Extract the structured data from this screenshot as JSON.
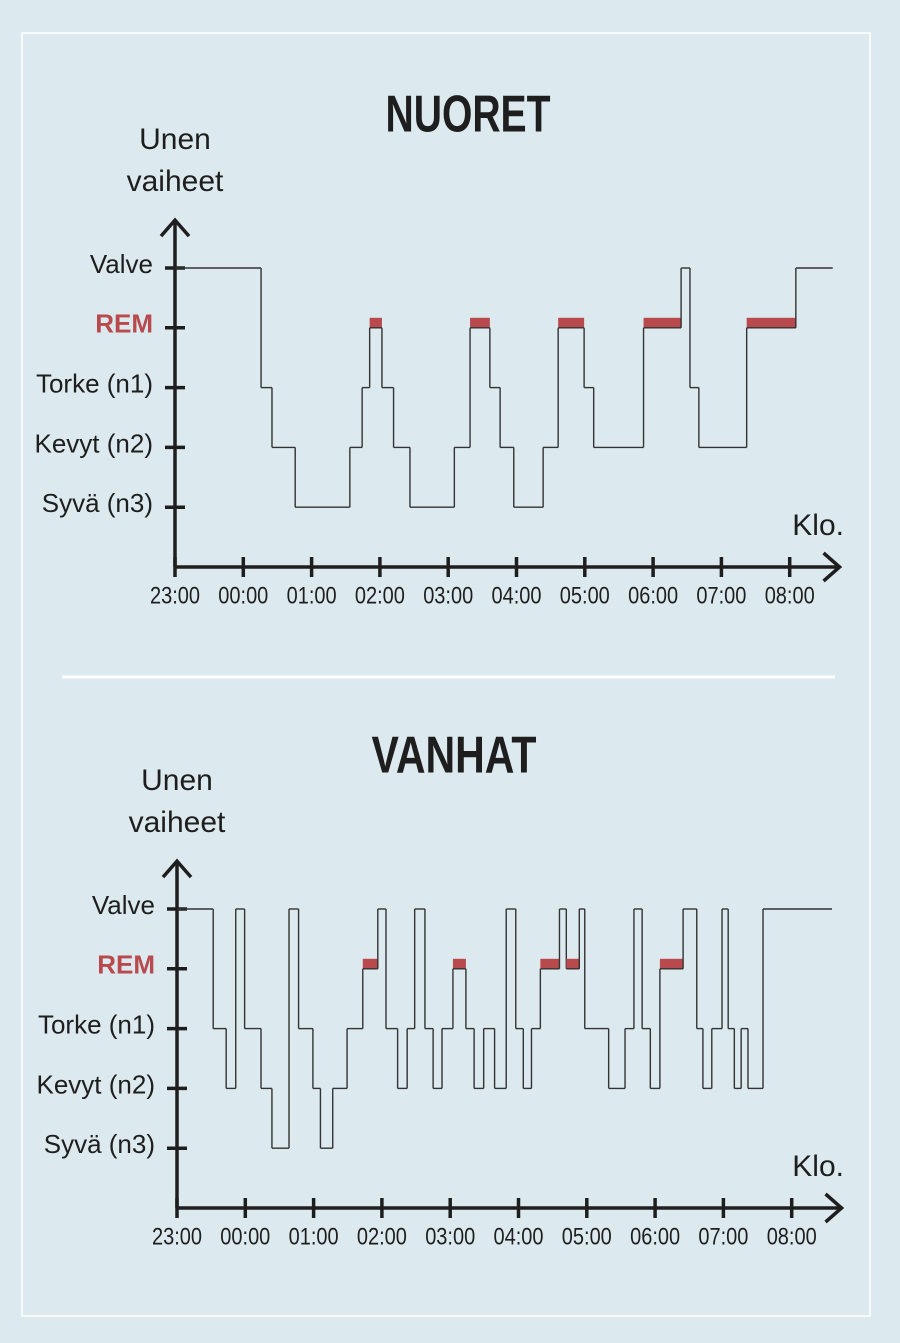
{
  "chart_data": [
    {
      "type": "step",
      "title": "NUORET",
      "y_label_lines": [
        "Unen",
        "vaiheet"
      ],
      "x_label": "Klo.",
      "xlim": [
        23,
        32.73
      ],
      "ylim": [
        0,
        5.8
      ],
      "xticks": [
        {
          "value": 23,
          "label": "23:00"
        },
        {
          "value": 24,
          "label": "00:00"
        },
        {
          "value": 25,
          "label": "01:00"
        },
        {
          "value": 26,
          "label": "02:00"
        },
        {
          "value": 27,
          "label": "03:00"
        },
        {
          "value": 28,
          "label": "04:00"
        },
        {
          "value": 29,
          "label": "05:00"
        },
        {
          "value": 30,
          "label": "06:00"
        },
        {
          "value": 31,
          "label": "07:00"
        },
        {
          "value": 32,
          "label": "08:00"
        }
      ],
      "yticks": [
        {
          "value": 5,
          "label": "Valve"
        },
        {
          "value": 4,
          "label": "REM"
        },
        {
          "value": 3,
          "label": "Torke (n1)"
        },
        {
          "value": 2,
          "label": "Kevyt (n2)"
        },
        {
          "value": 1,
          "label": "Syvä (n3)"
        }
      ],
      "color": "#333333",
      "highlight_tick": 1,
      "highlight_color": "#b84a4e",
      "x": [
        23,
        24.26,
        24.42,
        24.76,
        25.56,
        25.74,
        25.85,
        26.03,
        26.2,
        26.44,
        27.09,
        27.32,
        27.61,
        27.76,
        27.96,
        28.39,
        28.61,
        28.99,
        29.13,
        29.86,
        30.41,
        30.54,
        30.67,
        31.37,
        32.09,
        32.63
      ],
      "values": [
        5,
        3,
        2,
        1,
        2,
        3,
        4,
        3,
        2,
        1,
        2,
        4,
        3,
        2,
        1,
        2,
        4,
        3,
        2,
        4,
        5,
        3,
        2,
        4,
        5,
        5
      ]
    },
    {
      "type": "step",
      "title": "VANHAT",
      "y_label_lines": [
        "Unen",
        "vaiheet"
      ],
      "x_label": "Klo.",
      "xlim": [
        23,
        32.73
      ],
      "ylim": [
        0,
        5.8
      ],
      "xticks": [
        {
          "value": 23,
          "label": "23:00"
        },
        {
          "value": 24,
          "label": "00:00"
        },
        {
          "value": 25,
          "label": "01:00"
        },
        {
          "value": 26,
          "label": "02:00"
        },
        {
          "value": 27,
          "label": "03:00"
        },
        {
          "value": 28,
          "label": "04:00"
        },
        {
          "value": 29,
          "label": "05:00"
        },
        {
          "value": 30,
          "label": "06:00"
        },
        {
          "value": 31,
          "label": "07:00"
        },
        {
          "value": 32,
          "label": "08:00"
        }
      ],
      "yticks": [
        {
          "value": 5,
          "label": "Valve"
        },
        {
          "value": 4,
          "label": "REM"
        },
        {
          "value": 3,
          "label": "Torke (n1)"
        },
        {
          "value": 2,
          "label": "Kevyt (n2)"
        },
        {
          "value": 1,
          "label": "Syvä (n3)"
        }
      ],
      "color": "#333333",
      "highlight_tick": 1,
      "highlight_color": "#b84a4e",
      "x": [
        23,
        23.53,
        23.72,
        23.86,
        23.99,
        24.23,
        24.39,
        24.64,
        24.78,
        24.99,
        25.1,
        25.28,
        25.49,
        25.72,
        25.94,
        26.06,
        26.23,
        26.37,
        26.48,
        26.63,
        26.75,
        26.88,
        27.04,
        27.23,
        27.35,
        27.49,
        27.65,
        27.82,
        27.96,
        28.07,
        28.19,
        28.32,
        28.6,
        28.7,
        28.89,
        28.97,
        29.32,
        29.56,
        29.69,
        29.81,
        29.93,
        30.07,
        30.41,
        30.61,
        30.7,
        30.83,
        30.98,
        31.07,
        31.16,
        31.26,
        31.36,
        31.58,
        32.59
      ],
      "values": [
        5,
        3,
        2,
        5,
        3,
        2,
        1,
        5,
        3,
        2,
        1,
        2,
        3,
        4,
        5,
        3,
        2,
        3,
        5,
        3,
        2,
        3,
        4,
        3,
        2,
        3,
        2,
        5,
        3,
        2,
        3,
        4,
        5,
        4,
        5,
        3,
        2,
        3,
        5,
        3,
        2,
        4,
        5,
        3,
        2,
        3,
        5,
        3,
        2,
        3,
        2,
        5,
        5
      ]
    }
  ]
}
